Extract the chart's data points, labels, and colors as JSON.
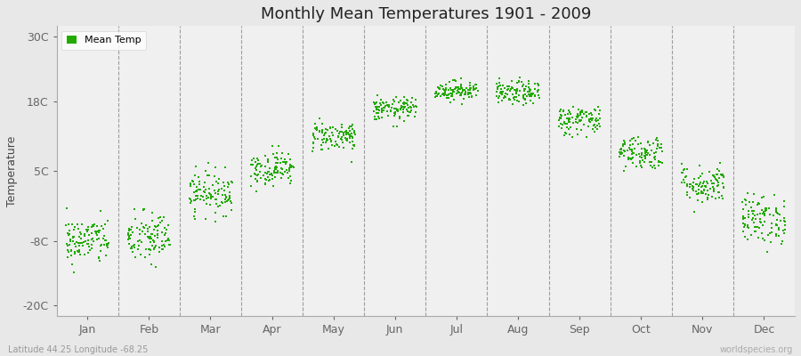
{
  "title": "Monthly Mean Temperatures 1901 - 2009",
  "ylabel": "Temperature",
  "subtitle": "Latitude 44.25 Longitude -68.25",
  "watermark": "worldspecies.org",
  "yticks": [
    -20,
    -8,
    5,
    18,
    30
  ],
  "ytick_labels": [
    "-20C",
    "-8C",
    "5C",
    "18C",
    "30C"
  ],
  "ylim": [
    -22,
    32
  ],
  "months": [
    "Jan",
    "Feb",
    "Mar",
    "Apr",
    "May",
    "Jun",
    "Jul",
    "Aug",
    "Sep",
    "Oct",
    "Nov",
    "Dec"
  ],
  "mean_temps": [
    -8.0,
    -7.5,
    1.0,
    5.5,
    11.5,
    16.5,
    20.0,
    19.5,
    14.5,
    8.5,
    2.5,
    -4.0
  ],
  "stds": [
    2.2,
    2.5,
    2.0,
    1.6,
    1.4,
    1.1,
    0.9,
    1.1,
    1.4,
    1.6,
    1.8,
    2.3
  ],
  "dot_color": "#22aa00",
  "bg_color": "#e8e8e8",
  "plot_bg": "#f0f0f0",
  "legend_label": "Mean Temp",
  "n_years": 109
}
